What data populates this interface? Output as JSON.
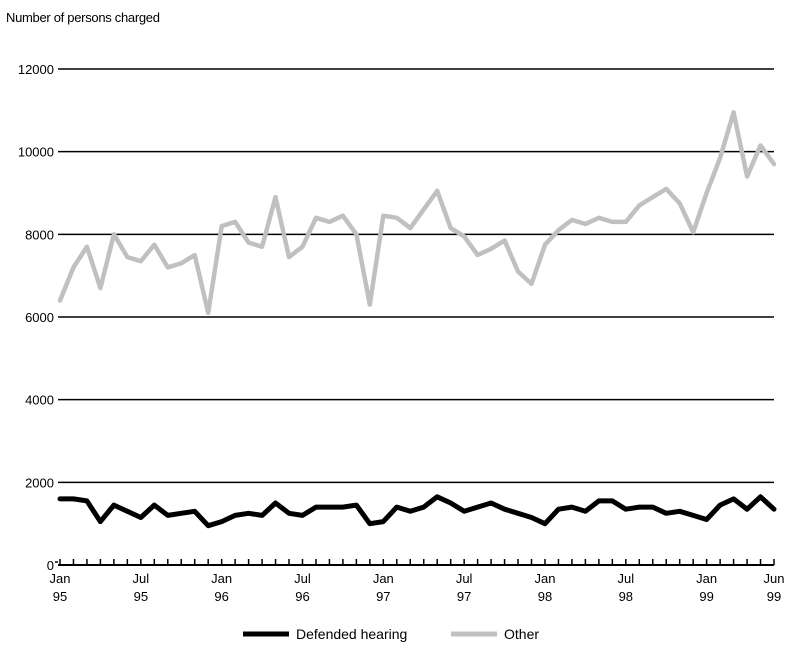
{
  "chart_data": {
    "type": "line",
    "ylabel": "Number of persons charged",
    "ylim": [
      0,
      12000
    ],
    "yticks": [
      0,
      2000,
      4000,
      6000,
      8000,
      10000,
      12000
    ],
    "ytick_labels": [
      "0",
      "2000",
      "4000",
      "6000",
      "8000",
      "10000",
      "12000"
    ],
    "grid": true,
    "legend_position": "bottom",
    "x_start": "Jan 95",
    "x_end": "Jun 99",
    "xtick_labels": [
      {
        "month": "Jan",
        "year": "95"
      },
      {
        "month": "Jul",
        "year": "95"
      },
      {
        "month": "Jan",
        "year": "96"
      },
      {
        "month": "Jul",
        "year": "96"
      },
      {
        "month": "Jan",
        "year": "97"
      },
      {
        "month": "Jul",
        "year": "97"
      },
      {
        "month": "Jan",
        "year": "98"
      },
      {
        "month": "Jul",
        "year": "98"
      },
      {
        "month": "Jan",
        "year": "99"
      },
      {
        "month": "Jun",
        "year": "99"
      }
    ],
    "series": [
      {
        "name": "Defended hearing",
        "color": "#000000",
        "values": [
          1600,
          1600,
          1550,
          1050,
          1450,
          1300,
          1150,
          1450,
          1200,
          1250,
          1300,
          950,
          1050,
          1200,
          1250,
          1200,
          1500,
          1250,
          1200,
          1400,
          1400,
          1400,
          1450,
          1000,
          1050,
          1400,
          1300,
          1400,
          1650,
          1500,
          1300,
          1400,
          1500,
          1350,
          1250,
          1150,
          1000,
          1350,
          1400,
          1300,
          1550,
          1550,
          1350,
          1400,
          1400,
          1250,
          1300,
          1200,
          1100,
          1450,
          1600,
          1350,
          1650,
          1350
        ]
      },
      {
        "name": "Other",
        "color": "#c0c0c0",
        "values": [
          6400,
          7200,
          7700,
          6700,
          8000,
          7450,
          7350,
          7750,
          7200,
          7300,
          7500,
          6100,
          8200,
          8300,
          7800,
          7700,
          8900,
          7450,
          7700,
          8400,
          8300,
          8450,
          8000,
          6300,
          8450,
          8400,
          8150,
          8600,
          9050,
          8150,
          7950,
          7500,
          7650,
          7850,
          7100,
          6800,
          7750,
          8100,
          8350,
          8250,
          8400,
          8300,
          8300,
          8700,
          8900,
          9100,
          8750,
          8050,
          9000,
          9850,
          10950,
          9400,
          10150,
          9700
        ]
      }
    ]
  }
}
